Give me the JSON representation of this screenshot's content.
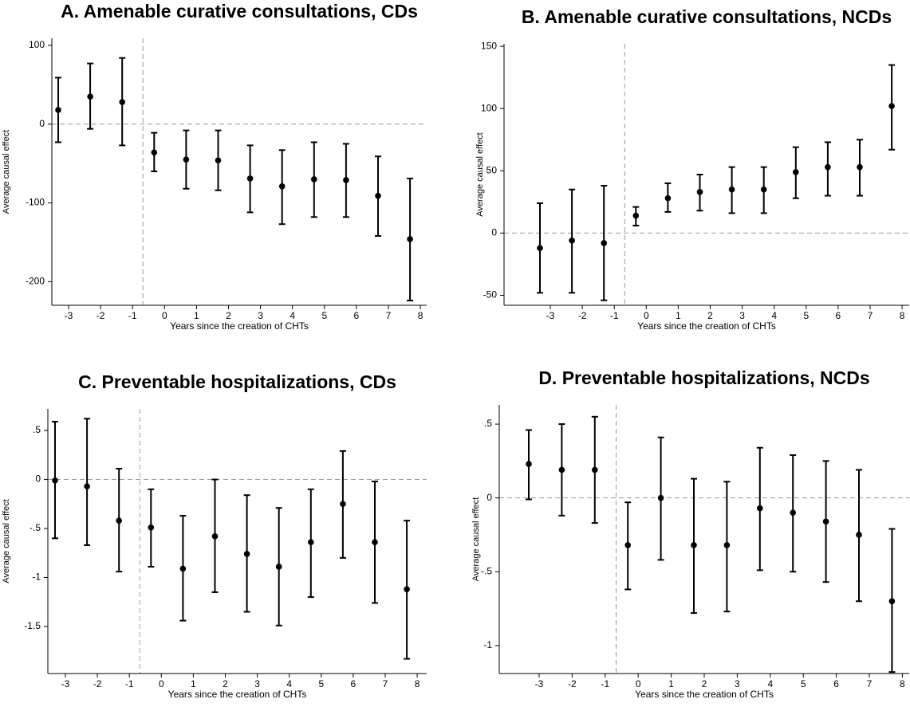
{
  "chart_data": [
    {
      "type": "errorbar",
      "title": "A. Amenable curative consultations, CDs",
      "xlabel": "Years since the creation of CHTs",
      "ylabel": "Average causal effect",
      "categories": [
        -3,
        -2,
        -1,
        0,
        1,
        2,
        3,
        4,
        5,
        6,
        7,
        8
      ],
      "values": [
        18,
        35,
        28,
        -36,
        -45,
        -46,
        -69,
        -79,
        -70,
        -71,
        -91,
        -146
      ],
      "ci_low": [
        -23,
        -6,
        -27,
        -60,
        -82,
        -84,
        -112,
        -127,
        -118,
        -118,
        -142,
        -224
      ],
      "ci_high": [
        59,
        77,
        84,
        -11,
        -8,
        -8,
        -27,
        -33,
        -23,
        -25,
        -41,
        -69
      ],
      "ylim": [
        -230,
        109
      ],
      "yticks": [
        -200,
        -100,
        0,
        100
      ],
      "color": "#000000"
    },
    {
      "type": "errorbar",
      "title": "B. Amenable curative consultations, NCDs",
      "xlabel": "Years since the creation of CHTs",
      "ylabel": "Average causal effect",
      "categories": [
        -3,
        -2,
        -1,
        0,
        1,
        2,
        3,
        4,
        5,
        6,
        7,
        8
      ],
      "values": [
        -12,
        -6,
        -8,
        14,
        28,
        33,
        35,
        35,
        49,
        53,
        53,
        102
      ],
      "ci_low": [
        -48,
        -48,
        -54,
        6,
        17,
        18,
        16,
        16,
        28,
        30,
        30,
        67
      ],
      "ci_high": [
        24,
        35,
        38,
        21,
        40,
        47,
        53,
        53,
        69,
        73,
        75,
        135
      ],
      "ylim": [
        -58,
        152
      ],
      "yticks": [
        -50,
        0,
        50,
        100,
        150
      ],
      "color": "#000000"
    },
    {
      "type": "errorbar",
      "title": "C. Preventable hospitalizations, CDs",
      "xlabel": "Years since the creation of CHTs",
      "ylabel": "Average causal effect",
      "categories": [
        -3,
        -2,
        -1,
        0,
        1,
        2,
        3,
        4,
        5,
        6,
        7,
        8
      ],
      "values": [
        -0.01,
        -0.07,
        -0.42,
        -0.49,
        -0.91,
        -0.58,
        -0.76,
        -0.89,
        -0.64,
        -0.25,
        -0.64,
        -1.12
      ],
      "ci_low": [
        -0.6,
        -0.67,
        -0.94,
        -0.89,
        -1.44,
        -1.15,
        -1.35,
        -1.49,
        -1.2,
        -0.8,
        -1.26,
        -1.83
      ],
      "ci_high": [
        0.59,
        0.62,
        0.11,
        -0.1,
        -0.37,
        0.0,
        -0.16,
        -0.29,
        -0.1,
        0.29,
        -0.02,
        -0.42
      ],
      "ylim": [
        -1.98,
        0.72
      ],
      "yticks": [
        {
          "value": -1.5,
          "label": "-1.5"
        },
        -1,
        {
          "value": -0.5,
          "label": "-.5"
        },
        0,
        {
          "value": 0.5,
          "label": ".5"
        }
      ],
      "color": "#000000"
    },
    {
      "type": "errorbar",
      "title": "D. Preventable hospitalizations, NCDs",
      "xlabel": "Years since the creation of CHTs",
      "ylabel": "Average causal effect",
      "categories": [
        -3,
        -2,
        -1,
        0,
        1,
        2,
        3,
        4,
        5,
        6,
        7,
        8
      ],
      "values": [
        0.23,
        0.19,
        0.19,
        -0.32,
        0.0,
        -0.32,
        -0.32,
        -0.07,
        -0.1,
        -0.16,
        -0.25,
        -0.7
      ],
      "ci_low": [
        -0.01,
        -0.12,
        -0.17,
        -0.62,
        -0.42,
        -0.78,
        -0.77,
        -0.49,
        -0.5,
        -0.57,
        -0.7,
        -1.18
      ],
      "ci_high": [
        0.46,
        0.5,
        0.55,
        -0.03,
        0.41,
        0.13,
        0.11,
        0.34,
        0.29,
        0.25,
        0.19,
        -0.21
      ],
      "ylim": [
        -1.19,
        0.63
      ],
      "yticks": [
        -1,
        {
          "value": -0.5,
          "label": "-.5"
        },
        0,
        {
          "value": 0.5,
          "label": ".5"
        }
      ],
      "color": "#000000"
    }
  ]
}
